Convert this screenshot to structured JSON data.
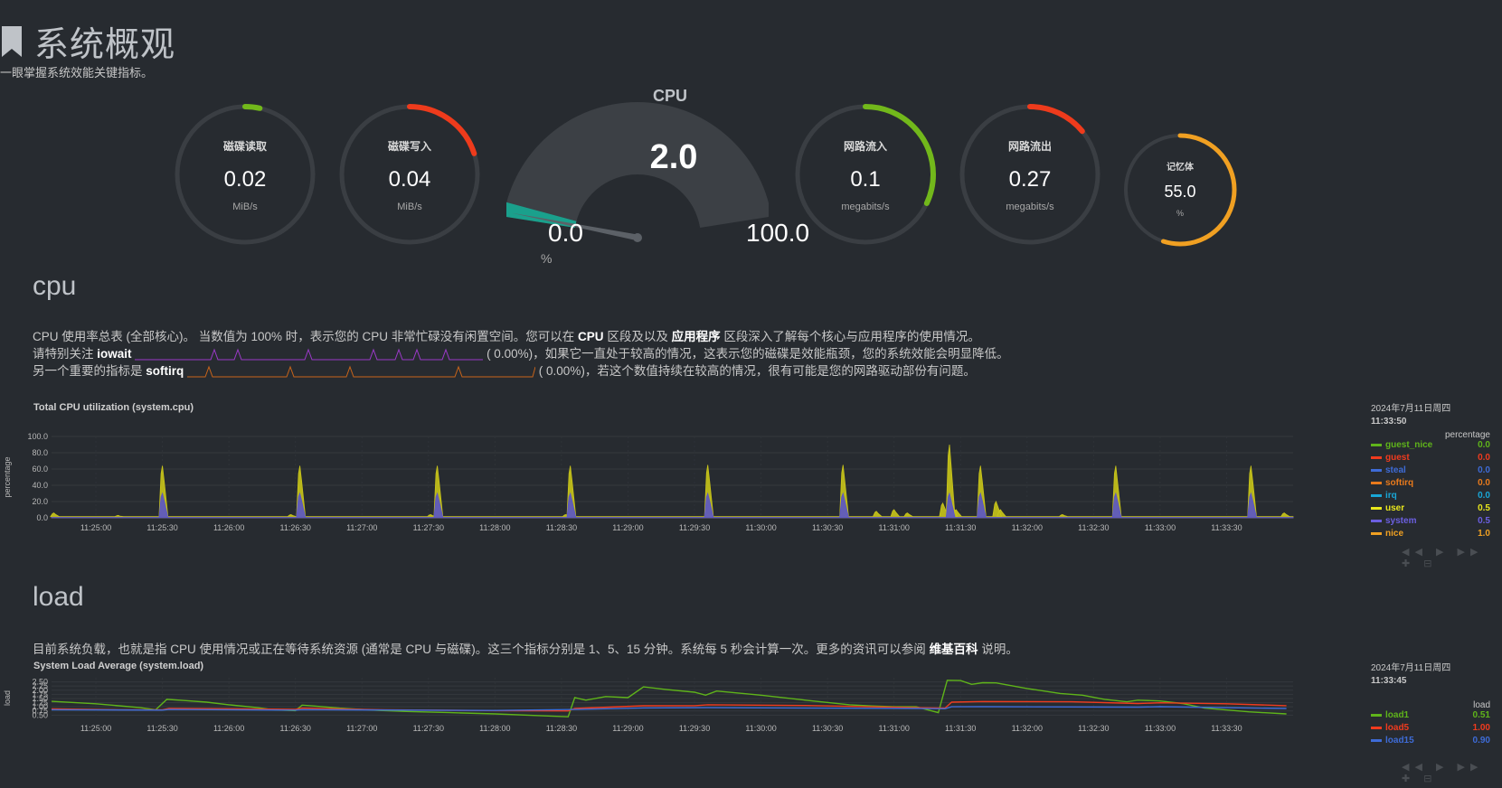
{
  "header": {
    "title": "系统概观",
    "subtitle": "一眼掌握系统效能关键指标。"
  },
  "gauges": {
    "disk_read": {
      "label": "磁碟读取",
      "value": "0.02",
      "unit": "MiB/s",
      "color": "#72b81b",
      "level": 0.02
    },
    "disk_write": {
      "label": "磁碟写入",
      "value": "0.04",
      "unit": "MiB/s",
      "color": "#ee3b1c",
      "level": 0.2
    },
    "net_in": {
      "label": "网路流入",
      "value": "0.1",
      "unit": "megabits/s",
      "color": "#72b81b",
      "level": 0.32
    },
    "net_out": {
      "label": "网路流出",
      "value": "0.27",
      "unit": "megabits/s",
      "color": "#ee3b1c",
      "level": 0.14
    },
    "memory": {
      "label": "记忆体",
      "value": "55.0",
      "unit": "%",
      "color": "#f0a022",
      "level": 0.55
    }
  },
  "cpu_gauge": {
    "title": "CPU",
    "value": "2.0",
    "min": "0.0",
    "max": "100.0",
    "unit": "%",
    "level": 0.02
  },
  "cpu_section": {
    "title": "cpu",
    "line1_a": "CPU 使用率总表 (全部核心)。 当数值为 100% 时，表示您的 CPU 非常忙碌没有闲置空间。您可以在",
    "line1_link1": "CPU",
    "line1_b": "区段及以及",
    "line1_link2": "应用程序",
    "line1_c": "区段深入了解每个核心与应用程序的使用情况。",
    "line2_a": "请特别关注",
    "line2_key": "iowait",
    "line2_val": "(      0.00%)，如果它一直处于较高的情况，这表示您的磁碟是效能瓶颈，您的系统效能会明显降低。",
    "line3_a": "另一个重要的指标是",
    "line3_key": "softirq",
    "line3_val": "(      0.00%)，若这个数值持续在较高的情况，很有可能是您的网路驱动部份有问题。"
  },
  "cpu_chart": {
    "title": "Total CPU utilization (system.cpu)",
    "ylabel": "percentage",
    "date": "2024年7月11日周四",
    "time": "11:33:50",
    "legend_head": "percentage",
    "legend": [
      {
        "name": "guest_nice",
        "value": "0.0",
        "color": "#5fb41a"
      },
      {
        "name": "guest",
        "value": "0.0",
        "color": "#f03b1e"
      },
      {
        "name": "steal",
        "value": "0.0",
        "color": "#3e6bd6"
      },
      {
        "name": "softirq",
        "value": "0.0",
        "color": "#e87a1c"
      },
      {
        "name": "irq",
        "value": "0.0",
        "color": "#19a6d6"
      },
      {
        "name": "user",
        "value": "0.5",
        "color": "#e8e61c"
      },
      {
        "name": "system",
        "value": "0.5",
        "color": "#6b5fe0"
      },
      {
        "name": "nice",
        "value": "1.0",
        "color": "#f0a022"
      }
    ],
    "controls": "◀◀ ▶ ▶▶ ✚ ⊟"
  },
  "load_section": {
    "title": "load",
    "desc_a": "目前系统负载，也就是指 CPU 使用情况或正在等待系统资源 (通常是 CPU 与磁碟)。这三个指标分别是 1、5、15 分钟。系统每 5 秒会计算一次。更多的资讯可以参阅",
    "desc_link": "维基百科",
    "desc_b": "说明。"
  },
  "load_chart": {
    "title": "System Load Average (system.load)",
    "ylabel": "load",
    "date": "2024年7月11日周四",
    "time": "11:33:45",
    "legend_head": "load",
    "legend": [
      {
        "name": "load1",
        "value": "0.51",
        "color": "#5fb41a"
      },
      {
        "name": "load5",
        "value": "1.00",
        "color": "#f03b1e"
      },
      {
        "name": "load15",
        "value": "0.90",
        "color": "#3e6bd6"
      }
    ],
    "controls": "◀◀ ▶ ▶▶ ✚ ⊟"
  },
  "chart_data": [
    {
      "type": "area",
      "title": "Total CPU utilization (system.cpu)",
      "ylabel": "percentage",
      "ylim": [
        0,
        100
      ],
      "yticks": [
        "0.0",
        "20.0",
        "40.0",
        "60.0",
        "80.0",
        "100.0"
      ],
      "xticks": [
        "11:25:00",
        "11:25:30",
        "11:26:00",
        "11:26:30",
        "11:27:00",
        "11:27:30",
        "11:28:00",
        "11:28:30",
        "11:29:00",
        "11:29:30",
        "11:30:00",
        "11:30:30",
        "11:31:00",
        "11:31:30",
        "11:32:00",
        "11:32:30",
        "11:33:00",
        "11:33:30"
      ],
      "x_range_sec": [
        -20,
        540
      ],
      "series": [
        {
          "name": "user",
          "color": "#c9c51a",
          "baseline": 1.5,
          "points": [
            [
              -19,
              6
            ],
            [
              10,
              3
            ],
            [
              30,
              64
            ],
            [
              88,
              4
            ],
            [
              92,
              64
            ],
            [
              151,
              4
            ],
            [
              154,
              64
            ],
            [
              212,
              4
            ],
            [
              214,
              64
            ],
            [
              276,
              4
            ],
            [
              276,
              65
            ],
            [
              337,
              5
            ],
            [
              337,
              65
            ],
            [
              352,
              8
            ],
            [
              360,
              10
            ],
            [
              366,
              6
            ],
            [
              382,
              18
            ],
            [
              385,
              90
            ],
            [
              386,
              20
            ],
            [
              388,
              10
            ],
            [
              399,
              64
            ],
            [
              406,
              20
            ],
            [
              408,
              10
            ],
            [
              436,
              4
            ],
            [
              460,
              64
            ],
            [
              521,
              64
            ],
            [
              536,
              6
            ]
          ]
        },
        {
          "name": "system",
          "color": "#5a54c8",
          "baseline": 0.5,
          "points": [
            [
              30,
              30
            ],
            [
              92,
              30
            ],
            [
              154,
              30
            ],
            [
              214,
              30
            ],
            [
              276,
              30
            ],
            [
              337,
              30
            ],
            [
              385,
              30
            ],
            [
              399,
              30
            ],
            [
              460,
              30
            ],
            [
              521,
              30
            ]
          ]
        }
      ]
    },
    {
      "type": "line",
      "title": "System Load Average (system.load)",
      "ylabel": "load",
      "ylim": [
        0.3,
        2.75
      ],
      "yticks": [
        "0.50",
        "0.75",
        "1.00",
        "1.25",
        "1.50",
        "1.75",
        "2.00",
        "2.25",
        "2.50"
      ],
      "xticks": [
        "11:25:00",
        "11:25:30",
        "11:26:00",
        "11:26:30",
        "11:27:00",
        "11:27:30",
        "11:28:00",
        "11:28:30",
        "11:29:00",
        "11:29:30",
        "11:30:00",
        "11:30:30",
        "11:31:00",
        "11:31:30",
        "11:32:00",
        "11:32:30",
        "11:33:00",
        "11:33:30"
      ],
      "x_range_sec": [
        -20,
        540
      ],
      "series": [
        {
          "name": "load1",
          "color": "#5fb41a",
          "points": [
            [
              -20,
              1.33
            ],
            [
              0,
              1.18
            ],
            [
              20,
              0.95
            ],
            [
              27,
              0.82
            ],
            [
              32,
              1.45
            ],
            [
              40,
              1.38
            ],
            [
              50,
              1.28
            ],
            [
              60,
              1.12
            ],
            [
              73,
              0.95
            ],
            [
              80,
              0.82
            ],
            [
              90,
              0.77
            ],
            [
              93,
              1.1
            ],
            [
              98,
              1.05
            ],
            [
              110,
              0.92
            ],
            [
              128,
              0.78
            ],
            [
              140,
              0.72
            ],
            [
              160,
              0.65
            ],
            [
              180,
              0.57
            ],
            [
              200,
              0.47
            ],
            [
              213,
              0.4
            ],
            [
              216,
              1.55
            ],
            [
              221,
              1.4
            ],
            [
              230,
              1.62
            ],
            [
              240,
              1.55
            ],
            [
              247,
              2.2
            ],
            [
              257,
              2.05
            ],
            [
              270,
              1.88
            ],
            [
              275,
              1.7
            ],
            [
              280,
              1.95
            ],
            [
              300,
              1.7
            ],
            [
              320,
              1.4
            ],
            [
              340,
              1.12
            ],
            [
              350,
              1.05
            ],
            [
              360,
              1.0
            ],
            [
              370,
              1.0
            ],
            [
              380,
              0.65
            ],
            [
              384,
              2.6
            ],
            [
              390,
              2.58
            ],
            [
              395,
              2.35
            ],
            [
              400,
              2.45
            ],
            [
              406,
              2.44
            ],
            [
              420,
              2.1
            ],
            [
              435,
              1.8
            ],
            [
              445,
              1.7
            ],
            [
              455,
              1.45
            ],
            [
              465,
              1.3
            ],
            [
              470,
              1.4
            ],
            [
              480,
              1.35
            ],
            [
              490,
              1.2
            ],
            [
              500,
              0.92
            ],
            [
              520,
              0.7
            ],
            [
              537,
              0.57
            ]
          ]
        },
        {
          "name": "load5",
          "color": "#f03b1e",
          "points": [
            [
              -20,
              0.87
            ],
            [
              10,
              0.82
            ],
            [
              30,
              0.82
            ],
            [
              33,
              0.9
            ],
            [
              60,
              0.88
            ],
            [
              90,
              0.85
            ],
            [
              93,
              0.92
            ],
            [
              130,
              0.82
            ],
            [
              180,
              0.77
            ],
            [
              213,
              0.75
            ],
            [
              216,
              0.9
            ],
            [
              247,
              1.06
            ],
            [
              270,
              1.07
            ],
            [
              276,
              1.12
            ],
            [
              320,
              1.08
            ],
            [
              370,
              0.95
            ],
            [
              383,
              0.92
            ],
            [
              386,
              1.28
            ],
            [
              400,
              1.32
            ],
            [
              440,
              1.3
            ],
            [
              470,
              1.2
            ],
            [
              480,
              1.24
            ],
            [
              510,
              1.18
            ],
            [
              537,
              1.07
            ]
          ]
        },
        {
          "name": "load15",
          "color": "#3e6bd6",
          "points": [
            [
              -20,
              0.82
            ],
            [
              30,
              0.8
            ],
            [
              33,
              0.84
            ],
            [
              90,
              0.8
            ],
            [
              93,
              0.83
            ],
            [
              180,
              0.78
            ],
            [
              216,
              0.84
            ],
            [
              247,
              0.93
            ],
            [
              276,
              0.95
            ],
            [
              370,
              0.9
            ],
            [
              383,
              0.88
            ],
            [
              386,
              1.0
            ],
            [
              400,
              1.01
            ],
            [
              470,
              0.98
            ],
            [
              480,
              1.01
            ],
            [
              537,
              0.9
            ]
          ]
        }
      ]
    }
  ]
}
